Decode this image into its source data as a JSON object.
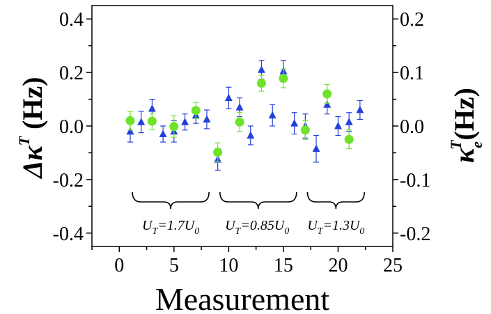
{
  "chart_data": {
    "type": "scatter",
    "xlabel": "Measurement",
    "ylabel_left": "Δκ^T (Hz)",
    "ylabel_right": "κ_e^T (Hz)",
    "xlim": [
      -2.5,
      25
    ],
    "ylim_left": [
      -0.45,
      0.45
    ],
    "ylim_right": [
      -0.225,
      0.225
    ],
    "x_ticks": [
      0,
      5,
      10,
      15,
      20,
      25
    ],
    "y_left_ticks": [
      -0.4,
      -0.2,
      0.0,
      0.2,
      0.4
    ],
    "y_left_tick_labels": [
      "-0.4",
      "-0.2",
      "0.0",
      "0.2",
      "0.4"
    ],
    "y_right_ticks": [
      -0.2,
      -0.1,
      0.0,
      0.1,
      0.2
    ],
    "y_right_tick_labels": [
      "-0.2",
      "-0.1",
      "0.0",
      "0.1",
      "0.2"
    ],
    "grid": false,
    "series": [
      {
        "marker": "triangle",
        "color": "#2340d8",
        "axis": "left",
        "x": [
          1,
          2,
          3,
          4,
          5,
          6,
          7,
          8,
          9,
          10,
          11,
          12,
          13,
          14,
          15,
          16,
          17,
          18,
          19,
          20,
          21,
          22
        ],
        "y": [
          -0.02,
          0.015,
          0.065,
          -0.03,
          -0.02,
          0.015,
          0.04,
          0.025,
          -0.125,
          0.105,
          0.07,
          -0.035,
          0.21,
          0.04,
          0.205,
          0.01,
          0.0,
          -0.085,
          0.08,
          0.0,
          0.015,
          0.06
        ],
        "err": [
          0.04,
          0.04,
          0.035,
          0.03,
          0.04,
          0.03,
          0.03,
          0.035,
          0.04,
          0.04,
          0.035,
          0.035,
          0.035,
          0.04,
          0.04,
          0.04,
          0.045,
          0.05,
          0.035,
          0.035,
          0.035,
          0.035
        ]
      },
      {
        "marker": "circle",
        "color": "#6fe32a",
        "axis": "left",
        "x": [
          1,
          3,
          5,
          7,
          9,
          11,
          13,
          15,
          17,
          19,
          21
        ],
        "y": [
          0.02,
          0.018,
          -0.002,
          0.058,
          -0.098,
          0.015,
          0.16,
          0.178,
          -0.015,
          0.12,
          -0.05
        ],
        "err": [
          0.035,
          0.03,
          0.04,
          0.03,
          0.035,
          0.035,
          0.03,
          0.035,
          0.035,
          0.035,
          0.035
        ]
      }
    ],
    "annotations": [
      {
        "text_main": "U",
        "sub1": "T",
        "rest": "=1.7U",
        "sub2": "0",
        "x_from": 1.2,
        "x_to": 8.2,
        "label_x": 4.7
      },
      {
        "text_main": "U",
        "sub1": "T",
        "rest": "=0.85U",
        "sub2": "0",
        "x_from": 9.2,
        "x_to": 16.2,
        "label_x": 12.6
      },
      {
        "text_main": "U",
        "sub1": "T",
        "rest": "=1.3U",
        "sub2": "0",
        "x_from": 17.2,
        "x_to": 22.4,
        "label_x": 19.8
      }
    ]
  }
}
